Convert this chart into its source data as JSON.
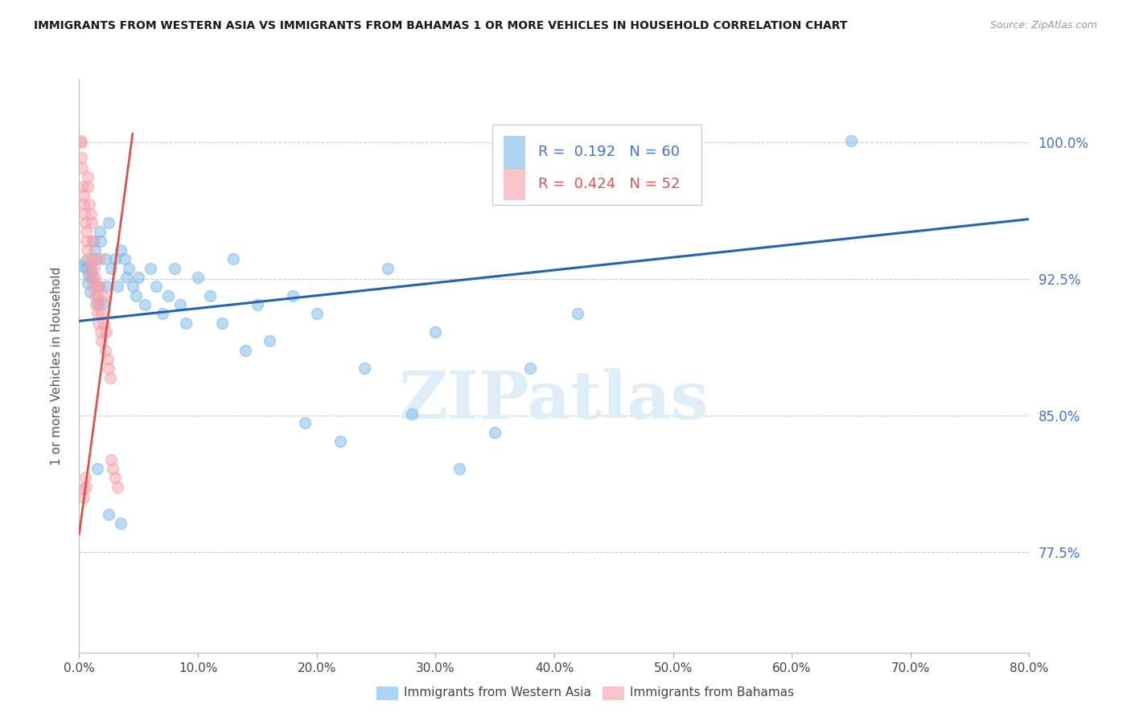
{
  "title": "IMMIGRANTS FROM WESTERN ASIA VS IMMIGRANTS FROM BAHAMAS 1 OR MORE VEHICLES IN HOUSEHOLD CORRELATION CHART",
  "source": "Source: ZipAtlas.com",
  "ylabel": "1 or more Vehicles in Household",
  "x_tick_labels": [
    "0.0%",
    "10.0%",
    "20.0%",
    "30.0%",
    "40.0%",
    "50.0%",
    "60.0%",
    "70.0%",
    "80.0%"
  ],
  "x_tick_vals": [
    0.0,
    10.0,
    20.0,
    30.0,
    40.0,
    50.0,
    60.0,
    70.0,
    80.0
  ],
  "y_tick_labels": [
    "77.5%",
    "85.0%",
    "92.5%",
    "100.0%"
  ],
  "y_tick_vals": [
    77.5,
    85.0,
    92.5,
    100.0
  ],
  "xlim": [
    0.0,
    80.0
  ],
  "ylim": [
    72.0,
    103.5
  ],
  "legend_blue_r": "0.192",
  "legend_blue_n": "60",
  "legend_pink_r": "0.424",
  "legend_pink_n": "52",
  "blue_color": "#7ab8e8",
  "pink_color": "#f4a0a8",
  "blue_line_color": "#2166ac",
  "pink_line_color": "#d9534f",
  "watermark": "ZIPatlas",
  "watermark_color": "#ddeef8",
  "legend_label_blue": "Immigrants from Western Asia",
  "legend_label_pink": "Immigrants from Bahamas",
  "blue_scatter": [
    [
      0.3,
      93.2
    ],
    [
      0.5,
      93.5
    ],
    [
      0.6,
      93.1
    ],
    [
      0.7,
      92.3
    ],
    [
      0.8,
      92.7
    ],
    [
      0.9,
      91.8
    ],
    [
      1.0,
      93.1
    ],
    [
      1.1,
      92.6
    ],
    [
      1.2,
      94.6
    ],
    [
      1.3,
      94.1
    ],
    [
      1.4,
      93.6
    ],
    [
      1.5,
      91.2
    ],
    [
      1.6,
      92.1
    ],
    [
      1.7,
      95.1
    ],
    [
      1.8,
      94.6
    ],
    [
      2.0,
      91.2
    ],
    [
      2.2,
      93.6
    ],
    [
      2.3,
      92.1
    ],
    [
      2.5,
      95.6
    ],
    [
      2.7,
      93.1
    ],
    [
      3.0,
      93.6
    ],
    [
      3.2,
      92.1
    ],
    [
      3.5,
      94.1
    ],
    [
      3.8,
      93.6
    ],
    [
      4.0,
      92.6
    ],
    [
      4.2,
      93.1
    ],
    [
      4.5,
      92.1
    ],
    [
      4.8,
      91.6
    ],
    [
      5.0,
      92.6
    ],
    [
      5.5,
      91.1
    ],
    [
      6.0,
      93.1
    ],
    [
      6.5,
      92.1
    ],
    [
      7.0,
      90.6
    ],
    [
      7.5,
      91.6
    ],
    [
      8.0,
      93.1
    ],
    [
      8.5,
      91.1
    ],
    [
      9.0,
      90.1
    ],
    [
      10.0,
      92.6
    ],
    [
      11.0,
      91.6
    ],
    [
      12.0,
      90.1
    ],
    [
      13.0,
      93.6
    ],
    [
      14.0,
      88.6
    ],
    [
      15.0,
      91.1
    ],
    [
      16.0,
      89.1
    ],
    [
      18.0,
      91.6
    ],
    [
      19.0,
      84.6
    ],
    [
      20.0,
      90.6
    ],
    [
      22.0,
      83.6
    ],
    [
      24.0,
      87.6
    ],
    [
      26.0,
      93.1
    ],
    [
      28.0,
      85.1
    ],
    [
      30.0,
      89.6
    ],
    [
      32.0,
      82.1
    ],
    [
      35.0,
      84.1
    ],
    [
      38.0,
      87.6
    ],
    [
      42.0,
      90.6
    ],
    [
      1.5,
      82.1
    ],
    [
      2.5,
      79.6
    ],
    [
      3.5,
      79.1
    ],
    [
      65.0,
      100.1
    ]
  ],
  "pink_scatter": [
    [
      0.1,
      100.1
    ],
    [
      0.15,
      100.0
    ],
    [
      0.2,
      99.2
    ],
    [
      0.25,
      98.6
    ],
    [
      0.3,
      97.6
    ],
    [
      0.35,
      97.1
    ],
    [
      0.4,
      96.6
    ],
    [
      0.45,
      96.1
    ],
    [
      0.5,
      95.6
    ],
    [
      0.55,
      95.1
    ],
    [
      0.6,
      94.6
    ],
    [
      0.65,
      94.1
    ],
    [
      0.7,
      98.1
    ],
    [
      0.75,
      97.6
    ],
    [
      0.8,
      93.6
    ],
    [
      0.85,
      96.6
    ],
    [
      0.9,
      92.6
    ],
    [
      0.95,
      93.1
    ],
    [
      1.0,
      96.1
    ],
    [
      1.05,
      95.6
    ],
    [
      1.1,
      93.6
    ],
    [
      1.15,
      94.6
    ],
    [
      1.2,
      92.1
    ],
    [
      1.25,
      93.1
    ],
    [
      1.3,
      91.6
    ],
    [
      1.35,
      92.6
    ],
    [
      1.4,
      91.1
    ],
    [
      1.45,
      92.1
    ],
    [
      1.5,
      90.6
    ],
    [
      1.55,
      91.6
    ],
    [
      1.6,
      90.1
    ],
    [
      1.65,
      91.1
    ],
    [
      1.7,
      93.6
    ],
    [
      1.75,
      92.1
    ],
    [
      1.8,
      89.6
    ],
    [
      1.85,
      90.6
    ],
    [
      1.9,
      89.1
    ],
    [
      2.0,
      91.6
    ],
    [
      2.1,
      90.1
    ],
    [
      2.2,
      88.6
    ],
    [
      2.3,
      89.6
    ],
    [
      2.4,
      88.1
    ],
    [
      2.5,
      87.6
    ],
    [
      2.6,
      87.1
    ],
    [
      2.7,
      82.6
    ],
    [
      2.8,
      82.1
    ],
    [
      3.0,
      81.6
    ],
    [
      3.2,
      81.1
    ],
    [
      0.5,
      81.6
    ],
    [
      0.6,
      81.1
    ],
    [
      0.3,
      81.0
    ],
    [
      0.4,
      80.5
    ]
  ],
  "blue_line_x": [
    0.0,
    80.0
  ],
  "blue_line_y": [
    90.2,
    95.8
  ],
  "pink_line_x": [
    0.0,
    4.5
  ],
  "pink_line_y": [
    78.5,
    100.5
  ]
}
